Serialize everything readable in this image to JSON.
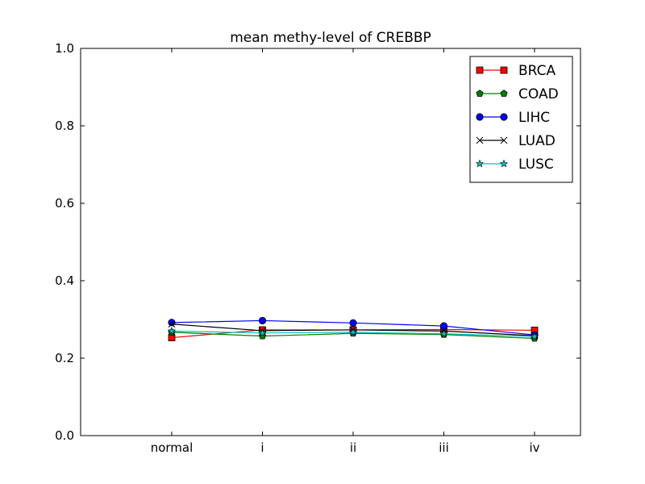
{
  "chart_data": {
    "type": "line",
    "title": "mean methy-level of CREBBP",
    "xlabel": "",
    "ylabel": "",
    "categories": [
      "normal",
      "i",
      "ii",
      "iii",
      "iv"
    ],
    "ylim": [
      0.0,
      1.0
    ],
    "yticks": [
      "0.0",
      "0.2",
      "0.4",
      "0.6",
      "0.8",
      "1.0"
    ],
    "legend_position": "top-right",
    "grid": false,
    "series": [
      {
        "name": "BRCA",
        "color": "#ff0000",
        "marker": "square",
        "values": [
          0.253,
          0.273,
          0.273,
          0.274,
          0.272
        ]
      },
      {
        "name": "COAD",
        "color": "#008000",
        "marker": "pentagon",
        "values": [
          0.267,
          0.257,
          0.264,
          0.261,
          0.251
        ]
      },
      {
        "name": "LIHC",
        "color": "#0000ff",
        "marker": "circle",
        "values": [
          0.292,
          0.297,
          0.291,
          0.283,
          0.26
        ]
      },
      {
        "name": "LUAD",
        "color": "#000000",
        "marker": "x",
        "values": [
          0.288,
          0.271,
          0.273,
          0.27,
          0.258
        ]
      },
      {
        "name": "LUSC",
        "color": "#00bfbf",
        "marker": "star",
        "values": [
          0.27,
          0.265,
          0.267,
          0.263,
          0.256
        ]
      }
    ]
  }
}
